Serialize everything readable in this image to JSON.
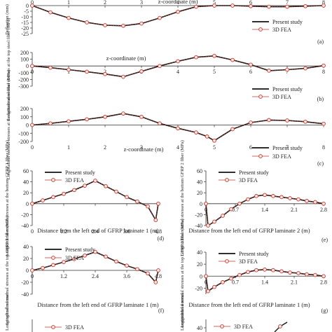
{
  "chart_data": [
    {
      "id": "a",
      "type": "line",
      "panel_label": "(a)",
      "xlabel": "z-coordinate (m)",
      "ylabel": "Deflection (mm)",
      "xlim": [
        0,
        8
      ],
      "ylim": [
        -25,
        0
      ],
      "xticks": [
        0,
        1,
        2,
        3,
        4,
        5,
        6,
        7,
        8
      ],
      "yticks": [
        0,
        -5,
        -10,
        -15,
        -20,
        -25
      ],
      "series": [
        {
          "name": "Present study",
          "style": "line",
          "x": [
            0,
            0.5,
            1,
            1.5,
            2,
            2.5,
            3,
            3.5,
            4,
            4.5,
            5,
            5.5,
            6,
            6.5,
            7,
            7.5,
            8
          ],
          "y": [
            0,
            -6,
            -11,
            -15,
            -17.5,
            -18,
            -16,
            -11,
            -5.5,
            -1,
            0,
            0,
            -0.5,
            -1,
            -1,
            -0.5,
            0
          ]
        },
        {
          "name": "3D FEA",
          "style": "markers",
          "x": [
            0,
            0.5,
            1,
            1.5,
            2,
            2.5,
            3,
            3.5,
            4,
            4.5,
            5,
            5.5,
            6,
            6.5,
            7,
            7.5,
            8
          ],
          "y": [
            0,
            -6,
            -11,
            -15,
            -17.5,
            -18,
            -16,
            -11,
            -5.5,
            -1,
            0,
            0,
            -0.5,
            -1,
            -1,
            -0.5,
            0
          ]
        }
      ]
    },
    {
      "id": "b",
      "type": "line",
      "panel_label": "(b)",
      "xlabel": "z-coordinate (m)",
      "ylabel": "Longitudinal normal stresses at the top steel fiber (MPa)",
      "xlim": [
        0,
        8
      ],
      "ylim": [
        -300,
        200
      ],
      "xticks": [
        0,
        1,
        2,
        3,
        4,
        5,
        6,
        7,
        8
      ],
      "yticks": [
        200,
        100,
        0,
        -100,
        -200,
        -300
      ],
      "series": [
        {
          "name": "Present study",
          "style": "line",
          "x": [
            0,
            0.5,
            1,
            1.5,
            2,
            2.5,
            3,
            3.5,
            4,
            4.5,
            5,
            5.5,
            6,
            6.5,
            7,
            7.5,
            8
          ],
          "y": [
            0,
            -25,
            -55,
            -85,
            -120,
            -160,
            -80,
            0,
            70,
            130,
            150,
            90,
            20,
            -70,
            -55,
            -35,
            5
          ]
        },
        {
          "name": "3D FEA",
          "style": "markers",
          "x": [
            0,
            0.5,
            1,
            1.5,
            2,
            2.5,
            3,
            3.5,
            4,
            4.5,
            5,
            5.5,
            6,
            6.5,
            7,
            7.5,
            8
          ],
          "y": [
            0,
            -25,
            -55,
            -85,
            -120,
            -160,
            -80,
            0,
            70,
            130,
            150,
            90,
            20,
            -70,
            -55,
            -35,
            5
          ]
        }
      ]
    },
    {
      "id": "c",
      "type": "line",
      "panel_label": "(c)",
      "xlabel": "z-coordinate (m)",
      "ylabel": "Longitudinal normal stresses at the bottom steel fiber (MPa)",
      "xlim": [
        0,
        8
      ],
      "ylim": [
        -200,
        200
      ],
      "xticks": [
        0,
        1,
        2,
        3,
        4,
        5,
        6,
        7,
        8
      ],
      "yticks": [
        200,
        100,
        0,
        -100,
        -200
      ],
      "series": [
        {
          "name": "Present study",
          "style": "line",
          "x": [
            0,
            0.5,
            1,
            1.5,
            2,
            2.5,
            3,
            3.5,
            4,
            4.5,
            4.8,
            5,
            5.5,
            6,
            6.5,
            7,
            7.5,
            8
          ],
          "y": [
            0,
            20,
            45,
            70,
            100,
            140,
            100,
            20,
            -40,
            -90,
            -140,
            -190,
            -50,
            30,
            60,
            55,
            40,
            15
          ]
        },
        {
          "name": "3D FEA",
          "style": "markers",
          "x": [
            0,
            0.5,
            1,
            1.5,
            2,
            2.5,
            3,
            3.5,
            4,
            4.5,
            4.8,
            5,
            5.5,
            6,
            6.5,
            7,
            7.5,
            8
          ],
          "y": [
            0,
            20,
            45,
            70,
            100,
            140,
            100,
            20,
            -40,
            -90,
            -140,
            -190,
            -50,
            30,
            60,
            55,
            40,
            15
          ]
        }
      ]
    },
    {
      "id": "d",
      "type": "line",
      "panel_label": "(d)",
      "xlabel": "Distance from the left end of GFRP laminate 1 (m)",
      "ylabel": "Longitudinal normal stresses at the bottom GFRP 1 fiber (MPa)",
      "xlim": [
        0,
        4.8
      ],
      "ylim": [
        -40,
        60
      ],
      "xticks": [
        0,
        1.2,
        2.4,
        3.6,
        4.8
      ],
      "yticks": [
        60,
        40,
        20,
        0,
        -20,
        -40
      ],
      "series": [
        {
          "name": "Present study",
          "style": "line",
          "x": [
            0,
            0.4,
            0.8,
            1.2,
            1.6,
            2.0,
            2.4,
            2.8,
            3.2,
            3.6,
            4.0,
            4.4,
            4.7,
            4.8
          ],
          "y": [
            0,
            6,
            12,
            18,
            25,
            33,
            42,
            32,
            22,
            12,
            4,
            -5,
            -30,
            0
          ]
        },
        {
          "name": "3D FEA",
          "style": "markers",
          "x": [
            0,
            0.4,
            0.8,
            1.2,
            1.6,
            2.0,
            2.4,
            2.8,
            3.2,
            3.6,
            4.0,
            4.4,
            4.7,
            4.8
          ],
          "y": [
            0,
            6,
            12,
            18,
            25,
            33,
            42,
            32,
            22,
            12,
            4,
            -5,
            -30,
            0
          ]
        }
      ]
    },
    {
      "id": "e",
      "type": "line",
      "panel_label": "(e)",
      "xlabel": "Distance from the left end of GFRP laminate 2 (m)",
      "ylabel": "Longitudinal normal stresses at the bottom GFRP 2 fiber (MPa)",
      "xlim": [
        0,
        2.8
      ],
      "ylim": [
        -40,
        60
      ],
      "xticks": [
        0,
        0.7,
        1.4,
        2.1,
        2.8
      ],
      "yticks": [
        60,
        40,
        20,
        0,
        -20,
        -40
      ],
      "series": [
        {
          "name": "Present study",
          "style": "line",
          "x": [
            0,
            0.05,
            0.2,
            0.4,
            0.6,
            0.8,
            1.0,
            1.2,
            1.4,
            1.6,
            1.8,
            2.0,
            2.2,
            2.4,
            2.6,
            2.8
          ],
          "y": [
            0,
            -40,
            -33,
            -22,
            -10,
            0,
            8,
            14,
            16,
            14,
            12,
            10,
            8,
            5,
            3,
            0
          ]
        },
        {
          "name": "3D FEA",
          "style": "markers",
          "x": [
            0,
            0.05,
            0.2,
            0.4,
            0.6,
            0.8,
            1.0,
            1.2,
            1.4,
            1.6,
            1.8,
            2.0,
            2.2,
            2.4,
            2.6,
            2.8
          ],
          "y": [
            0,
            -40,
            -33,
            -22,
            -10,
            0,
            8,
            14,
            16,
            14,
            12,
            10,
            8,
            5,
            3,
            0
          ]
        }
      ]
    },
    {
      "id": "f",
      "type": "line",
      "panel_label": "(f)",
      "xlabel": "Distance from the left end of GFRP laminate 1 (m)",
      "ylabel": "Longitudinal normal stresses at the top GFRP 1 fiber (MPa)",
      "xlim": [
        0,
        4.8
      ],
      "ylim": [
        -40,
        40
      ],
      "xticks": [
        0,
        1.2,
        2.4,
        3.6,
        4.8
      ],
      "yticks": [
        40,
        20,
        0,
        -20,
        -40
      ],
      "series": [
        {
          "name": "Present study",
          "style": "line",
          "x": [
            0,
            0.4,
            0.8,
            1.2,
            1.6,
            2.0,
            2.4,
            2.8,
            3.2,
            3.6,
            4.0,
            4.4,
            4.7,
            4.8
          ],
          "y": [
            0,
            4,
            9,
            14,
            19,
            25,
            31,
            23,
            15,
            8,
            2,
            -5,
            -20,
            0
          ]
        },
        {
          "name": "3D FEA",
          "style": "markers",
          "x": [
            0,
            0.4,
            0.8,
            1.2,
            1.6,
            2.0,
            2.4,
            2.8,
            3.2,
            3.6,
            4.0,
            4.4,
            4.7,
            4.8
          ],
          "y": [
            0,
            4,
            9,
            14,
            19,
            25,
            31,
            23,
            15,
            8,
            2,
            -5,
            -20,
            0
          ]
        }
      ]
    },
    {
      "id": "g",
      "type": "line",
      "panel_label": "(g)",
      "xlabel": "Distance from the left end of GFRP laminate 1 (m)",
      "ylabel": "Longitudinal normal stresses at the top GFRP 2 fiber (MPa)",
      "xlim": [
        0,
        2.8
      ],
      "ylim": [
        -30,
        40
      ],
      "xticks": [
        0,
        0.7,
        1.4,
        2.1,
        2.8
      ],
      "yticks": [
        40,
        20,
        0,
        -20
      ],
      "series": [
        {
          "name": "Present study",
          "style": "line",
          "x": [
            0,
            0.05,
            0.2,
            0.4,
            0.6,
            0.8,
            1.0,
            1.2,
            1.4,
            1.6,
            1.8,
            2.0,
            2.2,
            2.4,
            2.6,
            2.8
          ],
          "y": [
            0,
            -25,
            -18,
            -10,
            -4,
            2,
            7,
            10,
            11,
            10,
            8,
            6,
            5,
            3,
            2,
            0
          ]
        },
        {
          "name": "3D FEA",
          "style": "markers",
          "x": [
            0,
            0.05,
            0.2,
            0.4,
            0.6,
            0.8,
            1.0,
            1.2,
            1.4,
            1.6,
            1.8,
            2.0,
            2.2,
            2.4,
            2.6,
            2.8
          ],
          "y": [
            0,
            -25,
            -18,
            -10,
            -4,
            2,
            7,
            10,
            11,
            10,
            8,
            6,
            5,
            3,
            2,
            0
          ]
        }
      ]
    },
    {
      "id": "h",
      "type": "line",
      "partial": true,
      "ylabel": "Longitudinal normal",
      "legend_visible": [
        "3D FEA"
      ]
    },
    {
      "id": "i",
      "type": "line",
      "partial": true,
      "ylabel": "Longitudinal normal",
      "yticks": [
        40
      ],
      "legend_visible": [
        "3D FEA"
      ]
    }
  ]
}
